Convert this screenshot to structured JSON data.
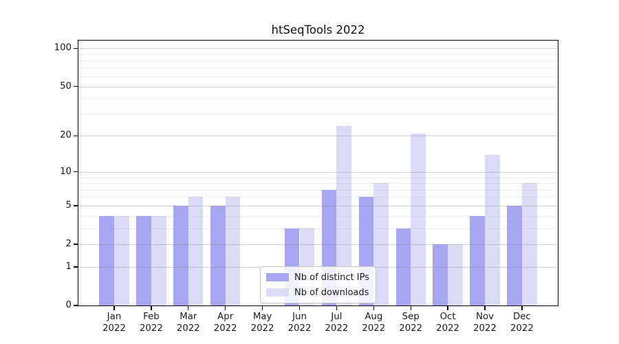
{
  "title": "htSeqTools 2022",
  "chart_data": {
    "type": "bar",
    "title": "htSeqTools 2022",
    "scale": "log1p",
    "categories": [
      "Jan",
      "Feb",
      "Mar",
      "Apr",
      "May",
      "Jun",
      "Jul",
      "Aug",
      "Sep",
      "Oct",
      "Nov",
      "Dec"
    ],
    "x_tick_year": "2022",
    "series": [
      {
        "name": "Nb of distinct IPs",
        "color": "#a7a6f2",
        "values": [
          4,
          4,
          5,
          5,
          0,
          3,
          7,
          6,
          3,
          2,
          4,
          5
        ]
      },
      {
        "name": "Nb of downloads",
        "color": "#dcdbf8",
        "values": [
          4,
          4,
          6,
          6,
          0,
          3,
          24,
          8,
          21,
          2,
          14,
          8
        ]
      }
    ],
    "xlabel": "",
    "ylabel": "",
    "yticks": [
      0,
      1,
      2,
      5,
      10,
      20,
      50,
      100
    ],
    "minor_gridlines": [
      3,
      4,
      6,
      7,
      8,
      9,
      30,
      40,
      60,
      70,
      80,
      90
    ],
    "ylim": [
      0,
      115
    ],
    "grid": true,
    "legend_position": "inside lower center"
  },
  "legend": {
    "items": [
      {
        "label": "Nb of distinct IPs",
        "swatch": "#a7a6f2"
      },
      {
        "label": "Nb of downloads",
        "swatch": "#dcdbf8"
      }
    ]
  },
  "colors": {
    "background": "#ffffff",
    "major_grid": "#d0d0d0",
    "minor_grid": "#eeeeee",
    "axis": "#000000",
    "text": "#1a1a1a"
  }
}
